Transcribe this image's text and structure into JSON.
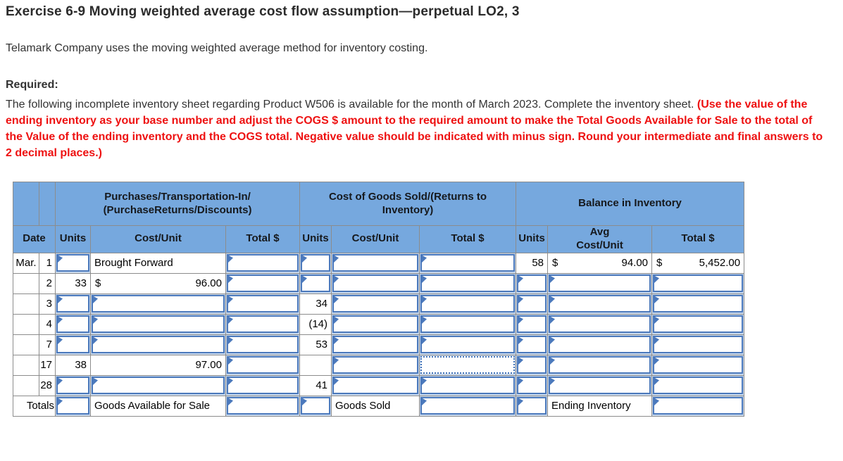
{
  "page": {
    "title": "Exercise 6-9 Moving weighted average cost flow assumption—perpetual LO2, 3",
    "intro": "Telamark Company uses the moving weighted average method for inventory costing.",
    "required_label": "Required:",
    "required_text_normal": "The following incomplete inventory sheet regarding Product W506 is available for the month of March 2023. Complete the inventory sheet. ",
    "required_text_emphasis": "(Use the value of the ending inventory as your base number and adjust the COGS $ amount to the required amount to make the Total Goods Available for Sale to the total of the Value of the ending inventory and the COGS total. Negative value should be indicated with minus sign. Round your intermediate and final answers to 2 decimal places.)"
  },
  "colors": {
    "header_bg": "#76a8de",
    "input_border": "#4b79bc",
    "selected_border": "#4273b8",
    "grid": "#8c8c8c",
    "emphasis_red": "#ee1111",
    "input_halo": "#c9daef"
  },
  "table": {
    "group_headers": [
      "Purchases/Transportation-In/\n(PurchaseReturns/Discounts)",
      "Cost of Goods Sold/(Returns to\nInventory)",
      "Balance in Inventory"
    ],
    "col_headers": [
      "Date",
      "Units",
      "Cost/Unit",
      "Total $",
      "Units",
      "Cost/Unit",
      "Total $",
      "Units",
      "Avg\nCost/Unit",
      "Total $"
    ],
    "rows": [
      {
        "month": "Mar.",
        "day": "1",
        "cells": [
          {
            "kind": "input"
          },
          {
            "kind": "text",
            "value": "Brought Forward"
          },
          {
            "kind": "input"
          },
          {
            "kind": "input"
          },
          {
            "kind": "input"
          },
          {
            "kind": "input"
          },
          {
            "kind": "num",
            "value": "58"
          },
          {
            "kind": "money",
            "currency": "$",
            "value": "94.00"
          },
          {
            "kind": "money",
            "currency": "$",
            "value": "5,452.00"
          }
        ]
      },
      {
        "month": "",
        "day": "2",
        "cells": [
          {
            "kind": "num",
            "value": "33"
          },
          {
            "kind": "money",
            "currency": "$",
            "value": "96.00"
          },
          {
            "kind": "input"
          },
          {
            "kind": "input"
          },
          {
            "kind": "input"
          },
          {
            "kind": "input"
          },
          {
            "kind": "input"
          },
          {
            "kind": "input"
          },
          {
            "kind": "input"
          }
        ]
      },
      {
        "month": "",
        "day": "3",
        "cells": [
          {
            "kind": "input"
          },
          {
            "kind": "input"
          },
          {
            "kind": "input"
          },
          {
            "kind": "num",
            "value": "34"
          },
          {
            "kind": "input"
          },
          {
            "kind": "input"
          },
          {
            "kind": "input"
          },
          {
            "kind": "input"
          },
          {
            "kind": "input"
          }
        ]
      },
      {
        "month": "",
        "day": "4",
        "cells": [
          {
            "kind": "input"
          },
          {
            "kind": "input"
          },
          {
            "kind": "input"
          },
          {
            "kind": "num",
            "value": "(14)"
          },
          {
            "kind": "input"
          },
          {
            "kind": "input"
          },
          {
            "kind": "input"
          },
          {
            "kind": "input"
          },
          {
            "kind": "input"
          }
        ]
      },
      {
        "month": "",
        "day": "7",
        "cells": [
          {
            "kind": "input"
          },
          {
            "kind": "input"
          },
          {
            "kind": "input"
          },
          {
            "kind": "num",
            "value": "53"
          },
          {
            "kind": "input"
          },
          {
            "kind": "input"
          },
          {
            "kind": "input"
          },
          {
            "kind": "input"
          },
          {
            "kind": "input"
          }
        ]
      },
      {
        "month": "",
        "day": "17",
        "cells": [
          {
            "kind": "num",
            "value": "38"
          },
          {
            "kind": "num",
            "value": "97.00"
          },
          {
            "kind": "input"
          },
          {
            "kind": "empty"
          },
          {
            "kind": "input"
          },
          {
            "kind": "input-selected"
          },
          {
            "kind": "input"
          },
          {
            "kind": "input"
          },
          {
            "kind": "input"
          }
        ]
      },
      {
        "month": "",
        "day": "28",
        "cells": [
          {
            "kind": "input"
          },
          {
            "kind": "input"
          },
          {
            "kind": "input"
          },
          {
            "kind": "num",
            "value": "41"
          },
          {
            "kind": "input"
          },
          {
            "kind": "input"
          },
          {
            "kind": "input"
          },
          {
            "kind": "input"
          },
          {
            "kind": "input"
          }
        ]
      },
      {
        "month": "",
        "day": "Totals",
        "merged_date": true,
        "cells": [
          {
            "kind": "input"
          },
          {
            "kind": "text",
            "value": "Goods Available for Sale"
          },
          {
            "kind": "input"
          },
          {
            "kind": "input"
          },
          {
            "kind": "text",
            "value": "Goods Sold"
          },
          {
            "kind": "input"
          },
          {
            "kind": "input"
          },
          {
            "kind": "text",
            "value": "Ending Inventory"
          },
          {
            "kind": "input"
          }
        ]
      }
    ]
  }
}
